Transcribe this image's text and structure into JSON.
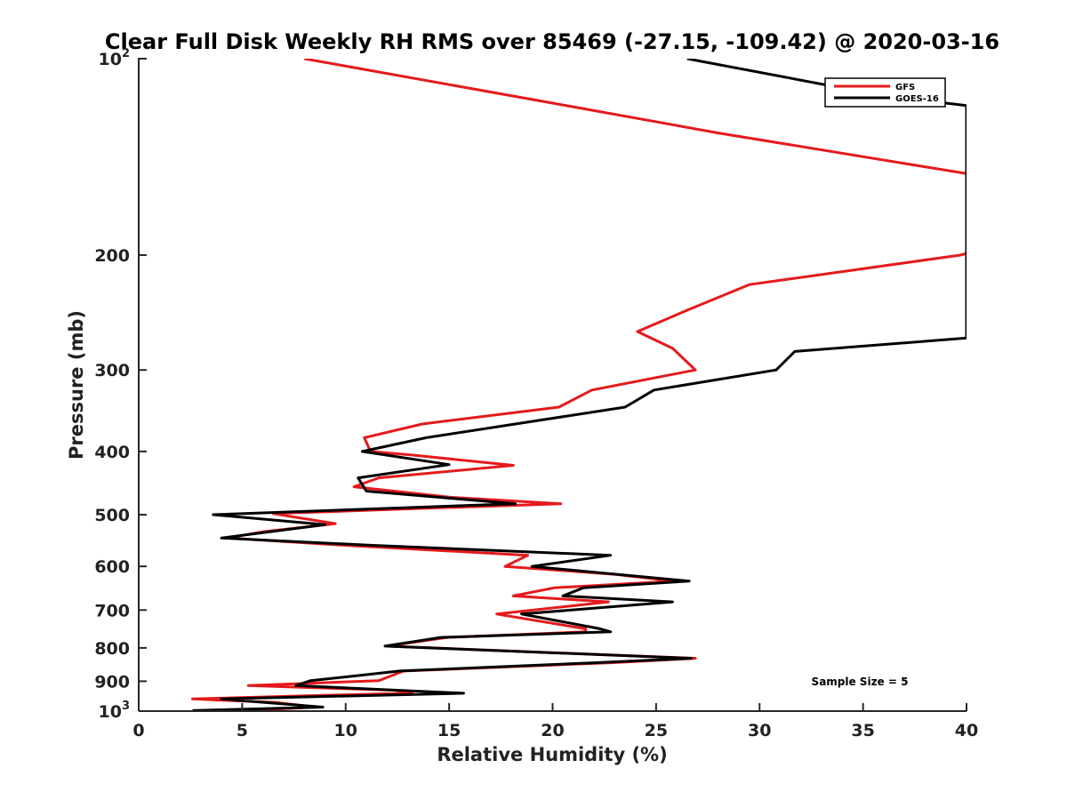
{
  "chart_data": {
    "type": "line",
    "title": "Clear Full Disk Weekly RH RMS over 85469 (-27.15, -109.42) @ 2020-03-16",
    "xlabel": "Relative Humidity (%)",
    "ylabel": "Pressure (mb)",
    "xlim": [
      0,
      40
    ],
    "ylim": [
      100,
      1000
    ],
    "yscale": "log",
    "y_reversed": true,
    "x_ticks": [
      "0",
      "5",
      "10",
      "15",
      "20",
      "25",
      "30",
      "35",
      "40"
    ],
    "y_ticks": [
      {
        "value": 100,
        "base": "10",
        "exp": "2"
      },
      {
        "value": 200,
        "label": "200"
      },
      {
        "value": 300,
        "label": "300"
      },
      {
        "value": 400,
        "label": "400"
      },
      {
        "value": 500,
        "label": "500"
      },
      {
        "value": 600,
        "label": "600"
      },
      {
        "value": 700,
        "label": "700"
      },
      {
        "value": 800,
        "label": "800"
      },
      {
        "value": 900,
        "label": "900"
      },
      {
        "value": 1000,
        "base": "10",
        "exp": "3"
      }
    ],
    "grid": false,
    "legend_position": "top-right",
    "annotation": "Sample Size = 5",
    "series": [
      {
        "name": "GFS",
        "color": "#e41a1c",
        "points": [
          [
            8,
            100
          ],
          [
            20,
            117
          ],
          [
            28,
            130
          ],
          [
            40,
            150
          ],
          [
            40.5,
            197
          ],
          [
            39.7,
            200
          ],
          [
            29.5,
            222
          ],
          [
            26.5,
            243
          ],
          [
            24.1,
            262
          ],
          [
            25.8,
            278
          ],
          [
            26.9,
            300
          ],
          [
            21.9,
            322
          ],
          [
            20.3,
            342
          ],
          [
            13.7,
            363
          ],
          [
            10.9,
            381
          ],
          [
            11.2,
            400
          ],
          [
            13.2,
            405
          ],
          [
            18.1,
            420
          ],
          [
            11.6,
            439
          ],
          [
            10.4,
            453
          ],
          [
            15,
            470
          ],
          [
            20.4,
            481
          ],
          [
            14.5,
            488
          ],
          [
            6.5,
            498
          ],
          [
            9.5,
            516
          ],
          [
            6,
            531
          ],
          [
            4.3,
            543
          ],
          [
            10,
            557
          ],
          [
            18.8,
            577
          ],
          [
            17.7,
            600
          ],
          [
            23,
            617
          ],
          [
            25.9,
            632
          ],
          [
            20.1,
            647
          ],
          [
            18.1,
            666
          ],
          [
            22.7,
            680
          ],
          [
            17.3,
            710
          ],
          [
            21.6,
            748
          ],
          [
            21.6,
            756
          ],
          [
            14.9,
            771
          ],
          [
            12,
            795
          ],
          [
            26.9,
            830
          ],
          [
            22.8,
            843
          ],
          [
            12.8,
            868
          ],
          [
            11.6,
            898
          ],
          [
            5.3,
            914
          ],
          [
            12.3,
            929
          ],
          [
            13.2,
            938
          ],
          [
            2.6,
            958
          ],
          [
            6.6,
            970
          ],
          [
            8.6,
            986
          ],
          [
            5.2,
            998
          ]
        ]
      },
      {
        "name": "GOES-16",
        "color": "#000000",
        "points": [
          [
            26.5,
            100
          ],
          [
            36,
            114
          ],
          [
            40,
            118
          ],
          [
            40,
            268
          ],
          [
            31.7,
            281
          ],
          [
            30.8,
            300
          ],
          [
            24.9,
            322
          ],
          [
            23.5,
            342
          ],
          [
            13.9,
            381
          ],
          [
            10.8,
            400
          ],
          [
            15,
            419
          ],
          [
            10.6,
            439
          ],
          [
            11,
            460
          ],
          [
            18.2,
            481
          ],
          [
            3.6,
            500
          ],
          [
            9,
            518
          ],
          [
            4,
            543
          ],
          [
            11.3,
            557
          ],
          [
            22.8,
            577
          ],
          [
            19,
            600
          ],
          [
            26.6,
            632
          ],
          [
            21.5,
            647
          ],
          [
            20.5,
            666
          ],
          [
            25.8,
            680
          ],
          [
            18.5,
            710
          ],
          [
            22.3,
            748
          ],
          [
            22.8,
            756
          ],
          [
            14.6,
            771
          ],
          [
            11.9,
            795
          ],
          [
            26.7,
            830
          ],
          [
            22,
            843
          ],
          [
            12.6,
            868
          ],
          [
            10.9,
            880
          ],
          [
            8.3,
            898
          ],
          [
            7.6,
            914
          ],
          [
            15.7,
            939
          ],
          [
            4,
            958
          ],
          [
            8.9,
            986
          ],
          [
            2.6,
            998
          ]
        ]
      }
    ]
  }
}
